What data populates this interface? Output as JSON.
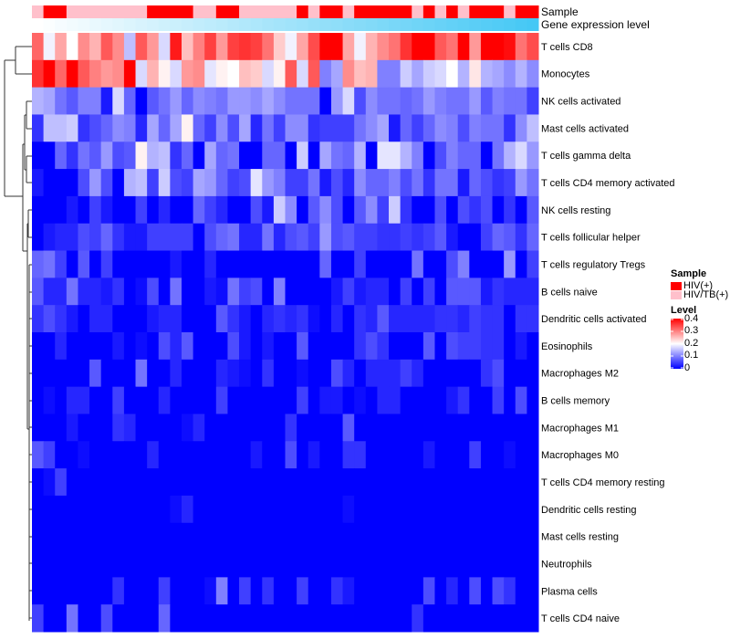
{
  "chart_data": {
    "type": "heatmap",
    "title": "",
    "annotation_labels": {
      "sample": "Sample",
      "gene_expression": "Gene expression level"
    },
    "rows": [
      "T cells CD8",
      "Monocytes",
      "NK cells activated",
      "Mast cells activated",
      "T cells gamma delta",
      "T cells CD4 memory activated",
      "NK cells resting",
      "T cells follicular helper",
      "T cells regulatory  Tregs",
      "B cells naive",
      "Dendritic cells activated",
      "Eosinophils",
      "Macrophages M2",
      "B cells memory",
      "Macrophages M1",
      "Macrophages M0",
      "T cells CD4 memory resting",
      "Dendritic cells resting",
      "Mast cells resting",
      "Neutrophils",
      "Plasma cells",
      "T cells CD4 naive"
    ],
    "n_columns": 44,
    "sample_groups": [
      "HIV/TB(+)",
      "HIV(+)",
      "HIV(+)",
      "HIV/TB(+)",
      "HIV/TB(+)",
      "HIV/TB(+)",
      "HIV/TB(+)",
      "HIV/TB(+)",
      "HIV/TB(+)",
      "HIV/TB(+)",
      "HIV(+)",
      "HIV(+)",
      "HIV(+)",
      "HIV(+)",
      "HIV/TB(+)",
      "HIV/TB(+)",
      "HIV(+)",
      "HIV(+)",
      "HIV/TB(+)",
      "HIV/TB(+)",
      "HIV/TB(+)",
      "HIV/TB(+)",
      "HIV/TB(+)",
      "HIV(+)",
      "HIV/TB(+)",
      "HIV(+)",
      "HIV(+)",
      "HIV/TB(+)",
      "HIV(+)",
      "HIV(+)",
      "HIV(+)",
      "HIV(+)",
      "HIV(+)",
      "HIV/TB(+)",
      "HIV(+)",
      "HIV/TB(+)",
      "HIV(+)",
      "HIV/TB(+)",
      "HIV(+)",
      "HIV(+)",
      "HIV(+)",
      "HIV/TB(+)",
      "HIV(+)",
      "HIV(+)"
    ],
    "gene_expression_trend": "increasing left to right",
    "values": [
      [
        0.32,
        0.19,
        0.27,
        0.2,
        0.29,
        0.26,
        0.33,
        0.29,
        0.15,
        0.33,
        0.28,
        0.17,
        0.38,
        0.25,
        0.3,
        0.35,
        0.28,
        0.35,
        0.36,
        0.35,
        0.31,
        0.24,
        0.19,
        0.27,
        0.34,
        0.4,
        0.4,
        0.27,
        0.19,
        0.26,
        0.29,
        0.31,
        0.36,
        0.4,
        0.4,
        0.33,
        0.31,
        0.4,
        0.28,
        0.4,
        0.4,
        0.39,
        0.31,
        0.34
      ],
      [
        0.36,
        0.4,
        0.32,
        0.4,
        0.33,
        0.3,
        0.28,
        0.29,
        0.4,
        0.17,
        0.26,
        0.21,
        0.17,
        0.28,
        0.29,
        0.18,
        0.21,
        0.2,
        0.25,
        0.24,
        0.17,
        0.21,
        0.33,
        0.17,
        0.33,
        0.1,
        0.13,
        0.29,
        0.25,
        0.26,
        0.1,
        0.1,
        0.16,
        0.13,
        0.16,
        0.17,
        0.2,
        0.14,
        0.22,
        0.14,
        0.13,
        0.11,
        0.14,
        0.11
      ],
      [
        0.14,
        0.13,
        0.09,
        0.07,
        0.1,
        0.1,
        0.02,
        0.17,
        0.08,
        0,
        0.07,
        0.09,
        0.12,
        0.08,
        0.11,
        0.1,
        0.09,
        0.12,
        0.12,
        0.11,
        0.13,
        0.11,
        0.09,
        0.09,
        0.09,
        0,
        0.12,
        0.17,
        0.06,
        0.11,
        0.09,
        0.09,
        0.08,
        0.09,
        0.12,
        0.1,
        0.09,
        0.09,
        0.12,
        0.07,
        0.1,
        0.09,
        0.09,
        0.05
      ],
      [
        0.04,
        0.15,
        0.15,
        0.16,
        0.04,
        0.06,
        0.08,
        0.11,
        0.1,
        0.03,
        0.13,
        0.08,
        0.13,
        0.21,
        0.08,
        0.05,
        0.11,
        0.06,
        0.13,
        0.03,
        0.09,
        0.05,
        0.11,
        0.11,
        0.04,
        0.05,
        0.05,
        0.05,
        0.09,
        0.11,
        0.13,
        0.02,
        0.08,
        0.05,
        0.08,
        0.11,
        0.1,
        0.06,
        0.1,
        0.09,
        0.09,
        0.04,
        0.11,
        0.15
      ],
      [
        0,
        0,
        0.08,
        0.04,
        0.09,
        0.07,
        0.12,
        0.06,
        0.07,
        0.21,
        0.14,
        0.15,
        0.04,
        0.08,
        0,
        0.13,
        0.08,
        0.09,
        0,
        0,
        0.08,
        0.08,
        0,
        0.16,
        0,
        0.13,
        0.09,
        0.08,
        0.14,
        0,
        0.18,
        0.18,
        0.14,
        0.1,
        0,
        0.06,
        0.1,
        0.08,
        0.08,
        0,
        0.09,
        0.14,
        0.17,
        0.12
      ],
      [
        0.02,
        0,
        0,
        0,
        0.06,
        0.12,
        0.06,
        0,
        0.14,
        0.15,
        0.05,
        0.16,
        0.06,
        0.05,
        0.13,
        0.12,
        0.08,
        0.05,
        0.06,
        0.18,
        0.12,
        0.1,
        0.05,
        0.05,
        0.09,
        0.02,
        0.06,
        0.03,
        0.11,
        0.08,
        0.08,
        0.1,
        0.06,
        0.09,
        0.04,
        0.09,
        0.09,
        0.02,
        0.08,
        0.06,
        0.04,
        0.05,
        0.12,
        0.09
      ],
      [
        0,
        0,
        0,
        0.02,
        0,
        0.05,
        0.02,
        0,
        0,
        0.05,
        0,
        0.03,
        0,
        0,
        0.08,
        0.05,
        0.03,
        0,
        0,
        0.06,
        0.02,
        0.16,
        0.11,
        0,
        0.07,
        0.11,
        0.06,
        0,
        0.07,
        0.11,
        0.05,
        0.16,
        0.04,
        0,
        0,
        0.06,
        0,
        0.06,
        0.04,
        0.06,
        0,
        0.04,
        0,
        0.07
      ],
      [
        0,
        0.02,
        0.03,
        0.03,
        0.06,
        0.05,
        0.08,
        0.04,
        0.02,
        0.02,
        0.05,
        0.05,
        0.05,
        0.05,
        0,
        0.06,
        0.08,
        0.09,
        0.03,
        0.03,
        0.09,
        0.03,
        0.06,
        0.07,
        0.05,
        0.12,
        0.06,
        0.07,
        0.05,
        0.05,
        0.04,
        0.04,
        0.05,
        0.04,
        0.05,
        0.07,
        0.02,
        0,
        0,
        0.05,
        0.08,
        0.07,
        0.04,
        0.08
      ],
      [
        0.08,
        0.09,
        0.05,
        0,
        0.07,
        0,
        0.05,
        0,
        0,
        0,
        0,
        0,
        0.02,
        0,
        0,
        0.03,
        0,
        0,
        0,
        0,
        0,
        0,
        0,
        0,
        0,
        0.08,
        0,
        0,
        0.05,
        0,
        0,
        0,
        0,
        0.09,
        0,
        0,
        0.06,
        0.1,
        0,
        0,
        0,
        0.12,
        0,
        0.05
      ],
      [
        0.07,
        0.03,
        0.03,
        0.09,
        0.03,
        0.03,
        0.02,
        0.04,
        0,
        0.01,
        0.06,
        0,
        0.09,
        0,
        0,
        0.02,
        0.01,
        0.09,
        0.05,
        0.06,
        0,
        0.1,
        0,
        0,
        0,
        0,
        0.02,
        0.05,
        0.02,
        0.03,
        0.03,
        0,
        0.05,
        0,
        0.05,
        0,
        0.07,
        0.07,
        0.07,
        0.02,
        0.04,
        0.03,
        0.03,
        0.03
      ],
      [
        0.04,
        0.06,
        0.04,
        0.02,
        0,
        0.03,
        0.03,
        0,
        0,
        0,
        0.02,
        0.03,
        0.03,
        0,
        0,
        0,
        0.07,
        0.04,
        0.02,
        0,
        0.03,
        0.04,
        0.03,
        0.04,
        0.01,
        0,
        0.03,
        0,
        0.04,
        0.03,
        0.07,
        0.03,
        0.03,
        0.03,
        0.03,
        0.04,
        0.04,
        0.03,
        0.05,
        0.04,
        0.04,
        0,
        0.04,
        0.04
      ],
      [
        0,
        0,
        0.03,
        0,
        0,
        0,
        0,
        0.02,
        0,
        0.01,
        0,
        0.06,
        0.03,
        0.07,
        0,
        0,
        0,
        0.06,
        0.02,
        0,
        0.02,
        0,
        0,
        0.07,
        0,
        0,
        0,
        0,
        0.04,
        0.06,
        0.04,
        0,
        0,
        0,
        0.07,
        0,
        0.06,
        0.05,
        0.05,
        0.04,
        0.04,
        0,
        0.02,
        0
      ],
      [
        0,
        0,
        0,
        0,
        0,
        0.07,
        0,
        0,
        0,
        0.09,
        0,
        0,
        0.03,
        0,
        0,
        0,
        0.03,
        0.02,
        0.01,
        0,
        0.04,
        0,
        0,
        0.01,
        0,
        0,
        0.06,
        0.03,
        0,
        0.03,
        0.03,
        0.03,
        0.05,
        0.03,
        0,
        0,
        0,
        0,
        0,
        0.04,
        0.06,
        0,
        0,
        0
      ],
      [
        0,
        0.01,
        0,
        0.03,
        0.03,
        0,
        0,
        0.05,
        0,
        0,
        0,
        0.03,
        0,
        0,
        0,
        0,
        0.05,
        0,
        0,
        0,
        0,
        0,
        0,
        0.05,
        0,
        0.02,
        0.02,
        0,
        0.01,
        0,
        0.03,
        0.03,
        0,
        0,
        0,
        0,
        0.02,
        0.04,
        0,
        0,
        0.05,
        0,
        0.06,
        0
      ],
      [
        0,
        0,
        0,
        0.02,
        0,
        0,
        0,
        0.04,
        0.03,
        0,
        0,
        0,
        0,
        0.01,
        0.03,
        0,
        0,
        0,
        0,
        0,
        0,
        0,
        0.04,
        0,
        0,
        0,
        0,
        0.07,
        0,
        0,
        0,
        0,
        0,
        0,
        0,
        0,
        0,
        0,
        0,
        0,
        0,
        0,
        0,
        0
      ],
      [
        0.07,
        0.05,
        0,
        0,
        0.01,
        0,
        0,
        0,
        0,
        0,
        0.03,
        0,
        0,
        0,
        0,
        0,
        0,
        0,
        0,
        0.02,
        0,
        0,
        0.06,
        0,
        0.02,
        0,
        0,
        0.04,
        0.04,
        0,
        0,
        0,
        0,
        0,
        0.02,
        0,
        0,
        0,
        0.05,
        0,
        0,
        0.01,
        0,
        0
      ],
      [
        0,
        0.01,
        0.05,
        0,
        0,
        0,
        0,
        0,
        0,
        0,
        0,
        0,
        0,
        0,
        0,
        0,
        0,
        0,
        0,
        0,
        0,
        0,
        0,
        0,
        0,
        0,
        0,
        0,
        0,
        0,
        0,
        0,
        0,
        0,
        0,
        0,
        0,
        0,
        0,
        0,
        0,
        0,
        0,
        0
      ],
      [
        0,
        0,
        0,
        0,
        0,
        0,
        0,
        0,
        0,
        0,
        0,
        0,
        0.01,
        0.03,
        0,
        0,
        0,
        0,
        0,
        0,
        0,
        0,
        0,
        0,
        0,
        0,
        0,
        0.01,
        0,
        0,
        0,
        0,
        0,
        0,
        0,
        0,
        0,
        0,
        0,
        0,
        0,
        0,
        0,
        0
      ],
      [
        0,
        0,
        0,
        0,
        0,
        0,
        0,
        0,
        0,
        0,
        0,
        0,
        0,
        0,
        0,
        0,
        0,
        0,
        0,
        0,
        0,
        0,
        0,
        0,
        0,
        0,
        0,
        0,
        0,
        0,
        0,
        0,
        0,
        0,
        0,
        0,
        0,
        0,
        0,
        0,
        0,
        0,
        0,
        0
      ],
      [
        0,
        0,
        0,
        0,
        0,
        0,
        0,
        0,
        0,
        0,
        0,
        0,
        0,
        0,
        0,
        0,
        0,
        0,
        0,
        0,
        0,
        0,
        0,
        0,
        0,
        0,
        0,
        0,
        0,
        0,
        0,
        0,
        0,
        0,
        0,
        0,
        0,
        0,
        0,
        0,
        0,
        0,
        0,
        0
      ],
      [
        0,
        0,
        0,
        0,
        0,
        0,
        0,
        0.04,
        0,
        0,
        0,
        0.05,
        0,
        0,
        0,
        0.01,
        0.1,
        0,
        0.05,
        0,
        0.04,
        0,
        0,
        0.05,
        0,
        0,
        0.04,
        0.02,
        0,
        0,
        0,
        0,
        0,
        0,
        0.06,
        0,
        0.03,
        0,
        0.06,
        0,
        0.06,
        0.04,
        0,
        0
      ],
      [
        0.05,
        0,
        0,
        0.09,
        0,
        0,
        0.06,
        0,
        0,
        0,
        0,
        0.08,
        0,
        0,
        0,
        0,
        0,
        0,
        0,
        0,
        0,
        0,
        0,
        0,
        0,
        0,
        0,
        0,
        0,
        0,
        0,
        0,
        0,
        0.04,
        0,
        0,
        0,
        0,
        0,
        0,
        0,
        0,
        0,
        0
      ]
    ],
    "color_scale": {
      "min": 0,
      "mid": 0.2,
      "max": 0.4,
      "low_color": "#0000ff",
      "mid_color": "#ffffff",
      "high_color": "#ff0000"
    },
    "legend": {
      "sample_title": "Sample",
      "sample_entries": [
        {
          "label": "HIV(+)",
          "color": "#ff0000"
        },
        {
          "label": "HIV/TB(+)",
          "color": "#ffc0cb"
        }
      ],
      "level_title": "Level",
      "level_ticks": [
        "0.4",
        "0.3",
        "0.2",
        "0.1",
        "0"
      ],
      "placement": "right"
    },
    "gene_expression_colors": {
      "low": "#ffffff",
      "high": "#45c8f5"
    }
  }
}
